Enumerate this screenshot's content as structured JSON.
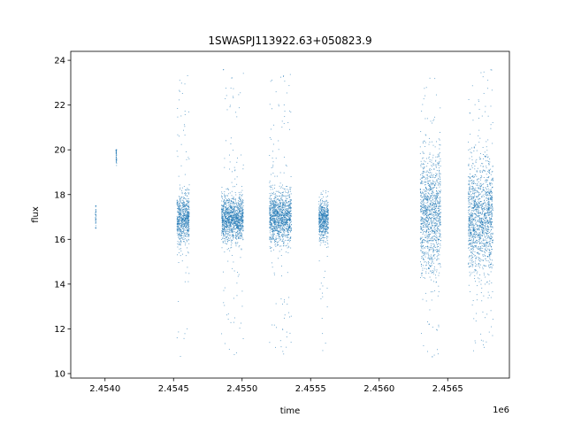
{
  "chart_data": {
    "type": "scatter",
    "title": "1SWASPJ113922.63+050823.9",
    "xlabel": "time",
    "ylabel": "flux",
    "x_offset_label": "1e6",
    "xlim": [
      2453750,
      2456950
    ],
    "ylim": [
      9.8,
      24.4
    ],
    "x_ticks": [
      2454000,
      2454500,
      2455000,
      2455500,
      2456000,
      2456500
    ],
    "x_tick_labels": [
      "2.4540",
      "2.4545",
      "2.4550",
      "2.4555",
      "2.4560",
      "2.4565"
    ],
    "y_ticks": [
      10,
      12,
      14,
      16,
      18,
      20,
      22,
      24
    ],
    "y_tick_labels": [
      "10",
      "12",
      "14",
      "16",
      "18",
      "20",
      "22",
      "24"
    ],
    "grid": false,
    "legend": "none",
    "marker_color": "#1f77b4",
    "series": [
      {
        "clusters": [
          {
            "x_start": 2453930,
            "x_end": 2453935,
            "y_center": 17.0,
            "y_spread": 0.35,
            "y_min": 16.5,
            "y_max": 17.5,
            "outlier_fraction": 0.0
          },
          {
            "x_start": 2454080,
            "x_end": 2454085,
            "y_center": 19.7,
            "y_spread": 0.2,
            "y_min": 19.3,
            "y_max": 20.0,
            "outlier_fraction": 0.0
          },
          {
            "x_start": 2454525,
            "x_end": 2454615,
            "y_center": 16.9,
            "y_spread": 0.55,
            "y_min": 10.5,
            "y_max": 23.5,
            "outlier_fraction": 0.08
          },
          {
            "x_start": 2454850,
            "x_end": 2455010,
            "y_center": 16.9,
            "y_spread": 0.5,
            "y_min": 10.7,
            "y_max": 23.6,
            "outlier_fraction": 0.08
          },
          {
            "x_start": 2455200,
            "x_end": 2455360,
            "y_center": 17.0,
            "y_spread": 0.55,
            "y_min": 10.5,
            "y_max": 23.4,
            "outlier_fraction": 0.08
          },
          {
            "x_start": 2455560,
            "x_end": 2455630,
            "y_center": 16.9,
            "y_spread": 0.45,
            "y_min": 10.8,
            "y_max": 18.2,
            "outlier_fraction": 0.04
          },
          {
            "x_start": 2456300,
            "x_end": 2456450,
            "y_center": 17.1,
            "y_spread": 1.3,
            "y_min": 10.6,
            "y_max": 23.6,
            "outlier_fraction": 0.07
          },
          {
            "x_start": 2456650,
            "x_end": 2456830,
            "y_center": 17.0,
            "y_spread": 1.2,
            "y_min": 10.8,
            "y_max": 23.6,
            "outlier_fraction": 0.07
          }
        ]
      }
    ]
  }
}
